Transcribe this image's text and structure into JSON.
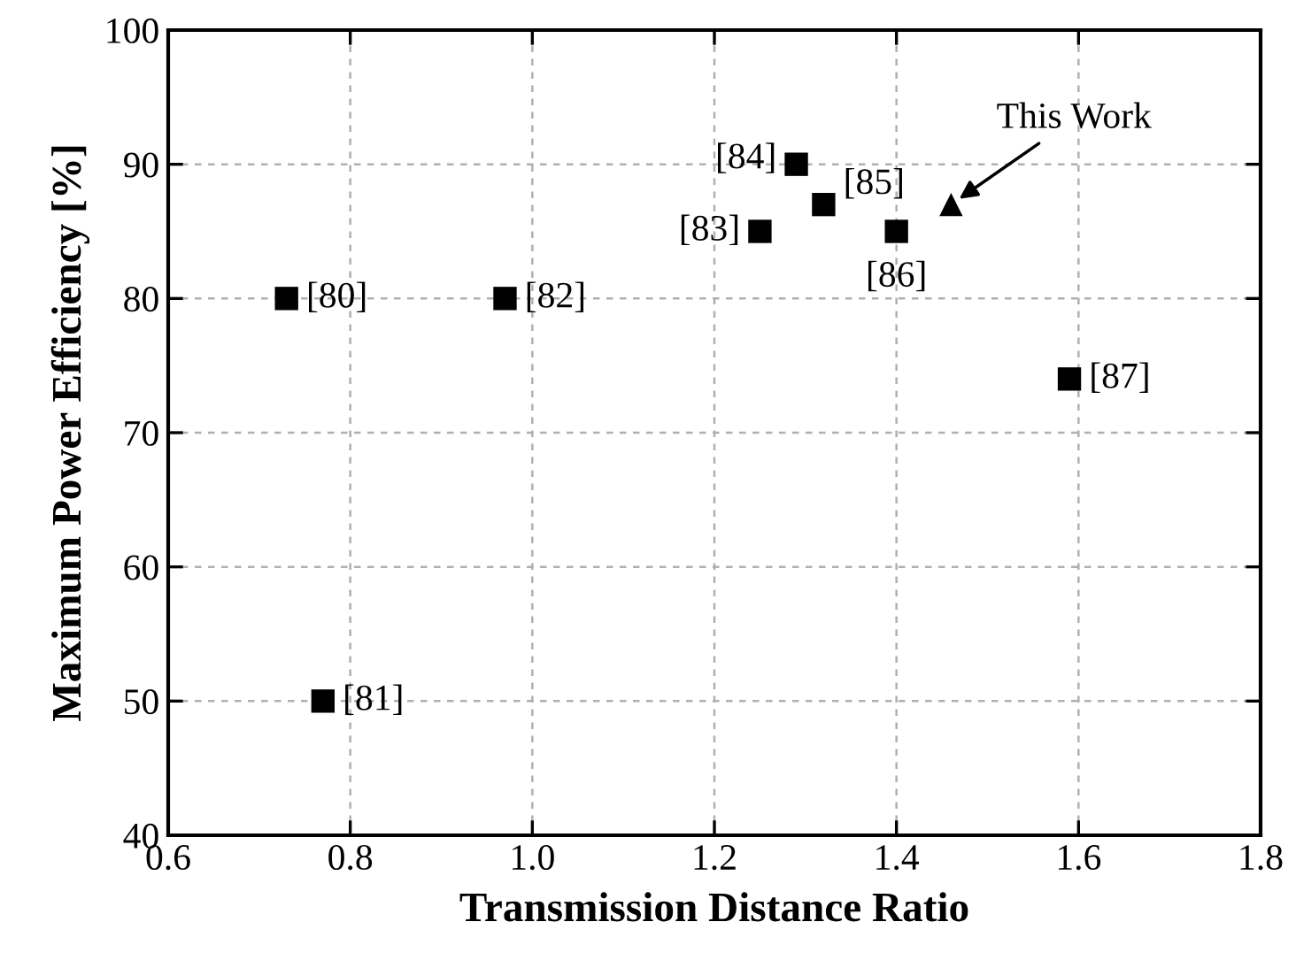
{
  "chart_data": {
    "type": "scatter",
    "xlabel": "Transmission Distance Ratio",
    "ylabel": "Maximum Power Efficiency [%]",
    "xlim": [
      0.6,
      1.8
    ],
    "ylim": [
      40,
      100
    ],
    "xticks": [
      {
        "value": 0.6,
        "label": "0.6"
      },
      {
        "value": 0.8,
        "label": "0.8"
      },
      {
        "value": 1.0,
        "label": "1.0"
      },
      {
        "value": 1.2,
        "label": "1.2"
      },
      {
        "value": 1.4,
        "label": "1.4"
      },
      {
        "value": 1.6,
        "label": "1.6"
      },
      {
        "value": 1.8,
        "label": "1.8"
      }
    ],
    "yticks": [
      40,
      50,
      60,
      70,
      80,
      90,
      100
    ],
    "grid": true,
    "series": [
      {
        "color": "#000000",
        "marker": "square",
        "x": [
          0.73,
          0.77,
          0.97,
          1.25,
          1.29,
          1.32,
          1.4,
          1.59
        ],
        "values": [
          80,
          50,
          80,
          85,
          90,
          87,
          85,
          74
        ]
      },
      {
        "color": "#000000",
        "marker": "triangle",
        "x": [
          1.46
        ],
        "values": [
          87
        ]
      }
    ],
    "annotations": [
      {
        "text": "[80]",
        "x": 0.73,
        "y": 80
      },
      {
        "text": "[81]",
        "x": 0.77,
        "y": 50
      },
      {
        "text": "[82]",
        "x": 0.97,
        "y": 80
      },
      {
        "text": "[83]",
        "x": 1.25,
        "y": 85
      },
      {
        "text": "[84]",
        "x": 1.29,
        "y": 90
      },
      {
        "text": "[85]",
        "x": 1.32,
        "y": 87
      },
      {
        "text": "[86]",
        "x": 1.4,
        "y": 85
      },
      {
        "text": "[87]",
        "x": 1.59,
        "y": 74
      },
      {
        "text": "This Work",
        "x": 1.46,
        "y": 87
      }
    ]
  }
}
